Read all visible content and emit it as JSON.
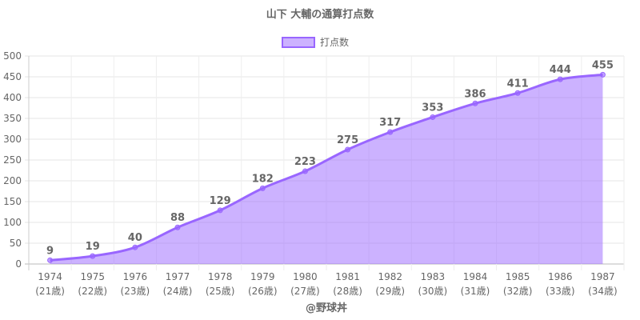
{
  "chart_data": {
    "type": "line",
    "title": "山下 大輔の通算打点数",
    "categories": [
      "1974",
      "1975",
      "1976",
      "1977",
      "1978",
      "1979",
      "1980",
      "1981",
      "1982",
      "1983",
      "1984",
      "1985",
      "1986",
      "1987"
    ],
    "sublabels": [
      "(21歳)",
      "(22歳)",
      "(23歳)",
      "(24歳)",
      "(25歳)",
      "(26歳)",
      "(27歳)",
      "(28歳)",
      "(29歳)",
      "(30歳)",
      "(31歳)",
      "(32歳)",
      "(33歳)",
      "(34歳)"
    ],
    "series": [
      {
        "name": "打点数",
        "values": [
          9,
          19,
          40,
          88,
          129,
          182,
          223,
          275,
          317,
          353,
          386,
          411,
          444,
          455
        ]
      }
    ],
    "ylim": [
      0,
      500
    ],
    "ystep": 50,
    "grid": true,
    "legend": "top-center",
    "line_color": "#9966ff",
    "fill_color": "rgba(153,102,255,0.5)",
    "credit": "@野球丼"
  }
}
